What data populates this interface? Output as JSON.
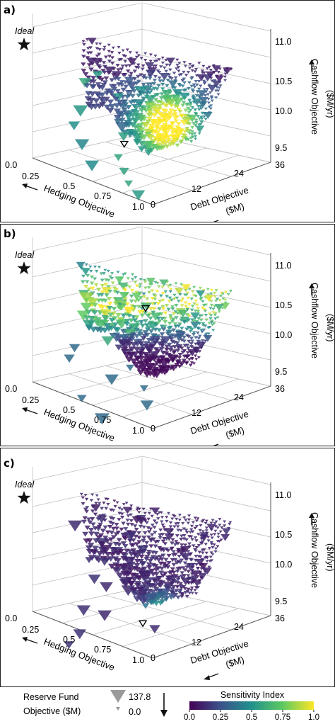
{
  "chart_data": [
    {
      "panel_label": "a)",
      "type": "scatter3d",
      "ideal_label": "Ideal",
      "axes": {
        "x": {
          "label": "Hedging Objective",
          "ticks": [
            "0.0",
            "0.25",
            "0.5",
            "0.75",
            "1.0"
          ],
          "range": [
            0,
            1
          ]
        },
        "y": {
          "label_line1": "Debt Objective",
          "label_line2": "($M)",
          "ticks": [
            "0",
            "12",
            "24",
            "36"
          ],
          "range": [
            0,
            36
          ]
        },
        "z": {
          "label_line1": "Cashflow Objective",
          "label_line2": "($M/yr)",
          "ticks": [
            "9.5",
            "10.0",
            "10.5",
            "11.0"
          ],
          "range": [
            9.5,
            11.0
          ]
        }
      },
      "color_variable": "Sensitivity Index",
      "sensitivity_pattern": "high sensitivity (0.75–1.0) concentrated in the lower-front region of the surface; low elsewhere",
      "highlighted_solution": {
        "hedging": 0.6,
        "debt": 6,
        "cashflow": 10.1
      }
    },
    {
      "panel_label": "b)",
      "type": "scatter3d",
      "ideal_label": "Ideal",
      "axes": {
        "x": {
          "label": "Hedging Objective",
          "ticks": [
            "0.0",
            "0.25",
            "0.5",
            "0.75",
            "1.0"
          ],
          "range": [
            0,
            1
          ]
        },
        "y": {
          "label_line1": "Debt Objective",
          "label_line2": "($M)",
          "ticks": [
            "0",
            "12",
            "24",
            "36"
          ],
          "range": [
            0,
            36
          ]
        },
        "z": {
          "label_line1": "Cashflow Objective",
          "label_line2": "($M/yr)",
          "ticks": [
            "9.5",
            "10.0",
            "10.5",
            "11.0"
          ],
          "range": [
            9.5,
            11.0
          ]
        }
      },
      "color_variable": "Sensitivity Index",
      "sensitivity_pattern": "high sensitivity (0.5–1.0) across the upper band of the surface; low in the lower wedge",
      "highlighted_solution": {
        "hedging": 0.45,
        "debt": 18,
        "cashflow": 10.75
      }
    },
    {
      "panel_label": "c)",
      "type": "scatter3d",
      "ideal_label": "Ideal",
      "axes": {
        "x": {
          "label": "Hedging Objective",
          "ticks": [
            "0.0",
            "0.25",
            "0.5",
            "0.75",
            "1.0"
          ],
          "range": [
            0,
            1
          ]
        },
        "y": {
          "label_line1": "Debt Objective",
          "label_line2": "($M)",
          "ticks": [
            "0",
            "12",
            "24",
            "36"
          ],
          "range": [
            0,
            36
          ]
        },
        "z": {
          "label_line1": "Cashflow Objective",
          "label_line2": "($M/yr)",
          "ticks": [
            "9.5",
            "10.0",
            "10.5",
            "11.0"
          ],
          "range": [
            9.5,
            11.0
          ]
        }
      },
      "color_variable": "Sensitivity Index",
      "sensitivity_pattern": "mostly low sensitivity; moderate-to-high only at the lower tip of the surface",
      "highlighted_solution": {
        "hedging": 0.7,
        "debt": 8,
        "cashflow": 9.7
      }
    }
  ],
  "legend": {
    "size_title_line1": "Reserve Fund",
    "size_title_line2": "Objective ($M)",
    "size_max": "137.8",
    "size_min": "0.0",
    "colorbar_title": "Sensitivity Index",
    "colorbar_ticks": [
      "0.0",
      "0.25",
      "0.5",
      "0.75",
      "1.0"
    ],
    "colormap": "viridis",
    "colormap_stops": [
      "#440154",
      "#3b528b",
      "#21918c",
      "#5ec962",
      "#fde725"
    ]
  }
}
